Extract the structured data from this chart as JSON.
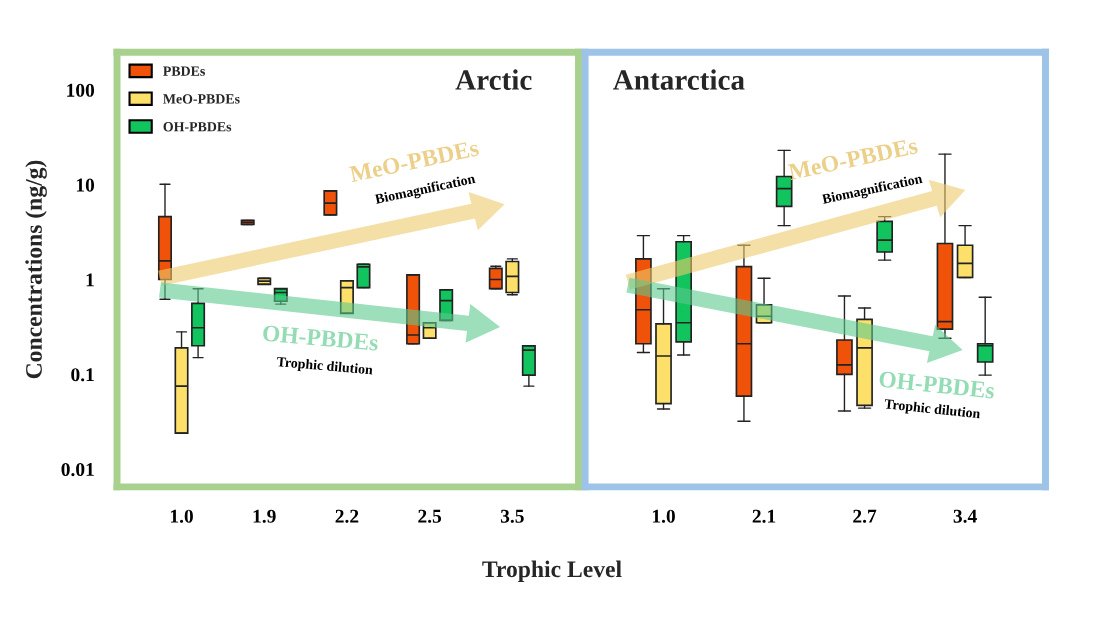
{
  "chart_data": [
    {
      "type": "box",
      "title": "Arctic",
      "xlabel": "Trophic Level",
      "ylabel": "Concentrations (ng/g)",
      "categories": [
        "1.0",
        "1.9",
        "2.2",
        "2.5",
        "3.5"
      ],
      "log": true,
      "ylim": [
        0.0065,
        250
      ],
      "yticks": [
        0.01,
        0.1,
        1,
        10,
        100
      ],
      "grid": false,
      "legend": "top left",
      "series": [
        {
          "name": "PBDEs",
          "color": "#f0520a",
          "boxes": [
            {
              "low": 0.62,
              "q1": 1.0,
              "median": 1.57,
              "q3": 4.6,
              "high": 10.1
            },
            {
              "low": 3.8,
              "q1": 3.8,
              "median": 4.0,
              "q3": 4.2,
              "high": 4.2
            },
            {
              "low": 4.8,
              "q1": 4.8,
              "median": 6.4,
              "q3": 8.6,
              "high": 8.6
            },
            {
              "low": 0.21,
              "q1": 0.21,
              "median": 0.26,
              "q3": 1.12,
              "high": 1.12
            },
            {
              "low": 0.8,
              "q1": 0.8,
              "median": 1.0,
              "q3": 1.31,
              "high": 1.38
            }
          ]
        },
        {
          "name": "MeO-PBDEs",
          "color": "#fde06a",
          "boxes": [
            {
              "low": 0.024,
              "q1": 0.024,
              "median": 0.075,
              "q3": 0.19,
              "high": 0.28
            },
            {
              "low": 0.89,
              "q1": 0.89,
              "median": 0.96,
              "q3": 1.03,
              "high": 1.03
            },
            {
              "low": 0.44,
              "q1": 0.44,
              "median": 0.82,
              "q3": 0.97,
              "high": 0.97
            },
            {
              "low": 0.24,
              "q1": 0.24,
              "median": 0.31,
              "q3": 0.35,
              "high": 0.35
            },
            {
              "low": 0.69,
              "q1": 0.73,
              "median": 1.08,
              "q3": 1.55,
              "high": 1.65
            }
          ]
        },
        {
          "name": "OH-PBDEs",
          "color": "#12c45e",
          "boxes": [
            {
              "low": 0.15,
              "q1": 0.2,
              "median": 0.31,
              "q3": 0.56,
              "high": 0.8
            },
            {
              "low": 0.55,
              "q1": 0.59,
              "median": 0.73,
              "q3": 0.8,
              "high": 0.8
            },
            {
              "low": 0.82,
              "q1": 0.82,
              "median": 1.36,
              "q3": 1.45,
              "high": 1.45
            },
            {
              "low": 0.37,
              "q1": 0.37,
              "median": 0.6,
              "q3": 0.78,
              "high": 0.78
            },
            {
              "low": 0.075,
              "q1": 0.098,
              "median": 0.18,
              "q3": 0.2,
              "high": 0.2
            }
          ]
        }
      ],
      "annotations": [
        "MeO-PBDEs",
        "Biomagnification",
        "OH-PBDEs",
        "Trophic dilution"
      ]
    },
    {
      "type": "box",
      "title": "Antarctica",
      "categories": [
        "1.0",
        "2.1",
        "2.7",
        "3.4"
      ],
      "log": true,
      "ylim": [
        0.0065,
        250
      ],
      "yticks": [
        0.01,
        0.1,
        1,
        10,
        100
      ],
      "tick_labels": "x",
      "grid": false,
      "series": [
        {
          "color": "#f0520a",
          "boxes": [
            {
              "low": 0.17,
              "q1": 0.21,
              "median": 0.48,
              "q3": 1.65,
              "high": 2.9
            },
            {
              "low": 0.032,
              "q1": 0.059,
              "median": 0.21,
              "q3": 1.37,
              "high": 2.3
            },
            {
              "low": 0.041,
              "q1": 0.1,
              "median": 0.126,
              "q3": 0.23,
              "high": 0.67
            },
            {
              "low": 0.24,
              "q1": 0.3,
              "median": 0.36,
              "q3": 2.4,
              "high": 21
            }
          ]
        },
        {
          "color": "#fde06a",
          "boxes": [
            {
              "low": 0.043,
              "q1": 0.049,
              "median": 0.156,
              "q3": 0.34,
              "high": 0.8
            },
            {
              "low": 0.35,
              "q1": 0.35,
              "median": 0.41,
              "q3": 0.54,
              "high": 1.03
            },
            {
              "low": 0.044,
              "q1": 0.047,
              "median": 0.19,
              "q3": 0.38,
              "high": 0.5
            },
            {
              "low": 1.05,
              "q1": 1.05,
              "median": 1.48,
              "q3": 2.3,
              "high": 3.7
            }
          ]
        },
        {
          "color": "#12c45e",
          "boxes": [
            {
              "low": 0.16,
              "q1": 0.22,
              "median": 0.35,
              "q3": 2.5,
              "high": 2.9
            },
            {
              "low": 3.7,
              "q1": 5.9,
              "median": 9.1,
              "q3": 12.2,
              "high": 23
            },
            {
              "low": 1.6,
              "q1": 1.95,
              "median": 2.6,
              "q3": 4.1,
              "high": 4.6
            },
            {
              "low": 0.098,
              "q1": 0.135,
              "median": 0.2,
              "q3": 0.21,
              "high": 0.65
            }
          ]
        }
      ],
      "annotations": [
        "MeO-PBDEs",
        "Biomagnification",
        "OH-PBDEs",
        "Trophic dilution"
      ]
    }
  ]
}
